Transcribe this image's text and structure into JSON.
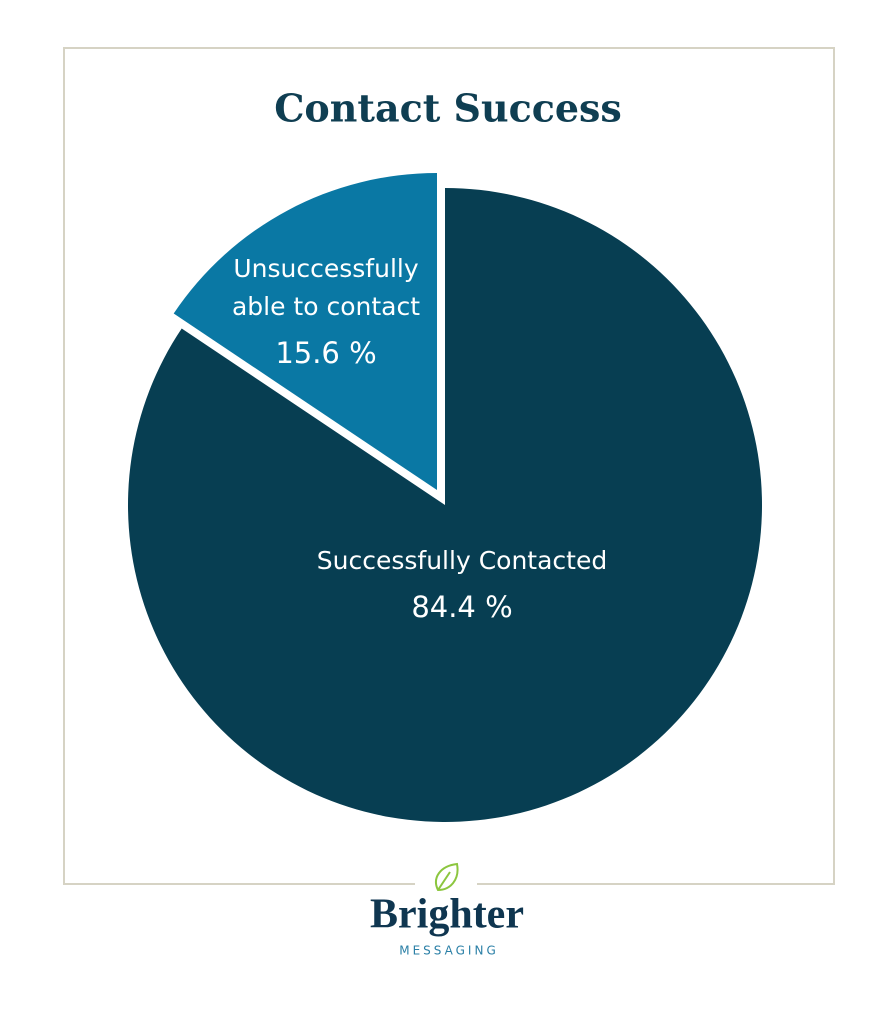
{
  "chart_data": {
    "type": "pie",
    "title": "Contact Success",
    "categories": [
      "Successfully Contacted",
      "Unsuccessfully able to contact"
    ],
    "values": [
      84.4,
      15.6
    ],
    "value_labels": [
      "84.4 %",
      "15.6 %"
    ],
    "colors": [
      "#073e52",
      "#0a78a4"
    ]
  },
  "branding": {
    "name": "Brighter",
    "tagline": "MESSAGING"
  }
}
